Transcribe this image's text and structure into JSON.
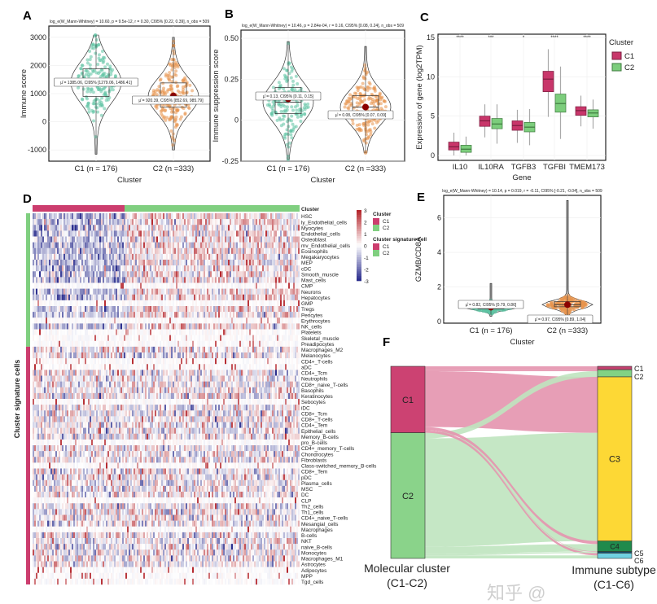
{
  "colors": {
    "c1_points": "#5cc3a3",
    "c2_points": "#e8944c",
    "mean": "#8b0000",
    "cluster_c1": "#cc3d6e",
    "cluster_c2": "#80cf80",
    "heat_low": "#2c2f8e",
    "heat_mid": "#ffffff",
    "heat_high": "#b5282e"
  },
  "chart_data": [
    {
      "panel": "A",
      "type": "violin",
      "stats_text": "log_e(W_Mann-Whitney) = 10.60, p = 9.5e-12, r = 0.30, CI95% [0.22, 0.39], n_obs = 509",
      "xlabel": "Cluster",
      "ylabel": "Immune score",
      "categories": [
        "C1 (n = 176)",
        "C2 (n =333)"
      ],
      "yticks": [
        "3000",
        "2000",
        "1000",
        "0",
        "-1000"
      ],
      "ylim": [
        -1400,
        3400
      ],
      "groups": [
        {
          "n": 176,
          "mean": 1385.06,
          "label": "μ̂ = 1385.06, CI95% [1279.06, 1486.41]",
          "q1": 900,
          "median": 1400,
          "q3": 1880,
          "min": -1150,
          "max": 3080
        },
        {
          "n": 333,
          "mean": 920.39,
          "label": "μ̂ = 920.39, CI95% [852.69, 985.79]",
          "q1": 520,
          "median": 900,
          "q3": 1380,
          "min": -1000,
          "max": 3000
        }
      ]
    },
    {
      "panel": "B",
      "type": "violin",
      "stats_text": "log_e(W_Mann-Whitney) = 10.46, p = 2.84e-04, r = 0.16, CI95% [0.08, 0.24], n_obs = 509",
      "xlabel": "Cluster",
      "ylabel": "Immune suppression score",
      "categories": [
        "C1 (n = 176)",
        "C2 (n =333)"
      ],
      "yticks": [
        "0.50",
        "0.25",
        "0",
        "-0.25"
      ],
      "ylim": [
        -0.25,
        0.55
      ],
      "groups": [
        {
          "n": 176,
          "mean": 0.13,
          "label": "μ̂ = 0.13, CI95% [0.11, 0.15]",
          "q1": 0.04,
          "median": 0.11,
          "q3": 0.2,
          "min": -0.24,
          "max": 0.48
        },
        {
          "n": 333,
          "mean": 0.08,
          "label": "μ̂ = 0.08, CI95% [0.07, 0.09]",
          "q1": 0.01,
          "median": 0.08,
          "q3": 0.15,
          "min": -0.2,
          "max": 0.45
        }
      ]
    },
    {
      "panel": "C",
      "type": "box",
      "xlabel": "Gene",
      "ylabel": "Expression of gene (log2TPM)",
      "categories": [
        "IL10",
        "IL10RA",
        "TGFB3",
        "TGFBI",
        "TMEM173"
      ],
      "significance": [
        "****",
        "***",
        "*",
        "****",
        "****"
      ],
      "yticks": [
        "15",
        "10",
        "5",
        "0"
      ],
      "ylim": [
        -0.7,
        15.5
      ],
      "legend": {
        "title": "Cluster",
        "items": [
          "C1",
          "C2"
        ]
      },
      "series": [
        {
          "name": "C1",
          "boxes": [
            [
              0,
              0.7,
              1.1,
              1.7,
              2.9
            ],
            [
              2.3,
              3.7,
              4.4,
              5.0,
              6.5
            ],
            [
              1.6,
              3.2,
              3.8,
              4.4,
              5.8
            ],
            [
              4.9,
              8.1,
              9.7,
              10.7,
              13.5
            ],
            [
              3.7,
              5.1,
              5.7,
              6.2,
              7.6
            ]
          ]
        },
        {
          "name": "C2",
          "boxes": [
            [
              0,
              0.4,
              0.8,
              1.3,
              2.4
            ],
            [
              1.5,
              3.4,
              4.0,
              4.7,
              6.5
            ],
            [
              1.3,
              3.0,
              3.6,
              4.2,
              5.9
            ],
            [
              2.1,
              5.5,
              6.6,
              7.8,
              11.3
            ],
            [
              3.4,
              4.9,
              5.4,
              5.8,
              7.1
            ]
          ]
        }
      ]
    },
    {
      "panel": "D",
      "type": "heatmap",
      "top_annotation": "Cluster",
      "side_label": "Cluster signature cells",
      "rows": [
        "HSC",
        "ly_Endothelial_cells",
        "Myocytes",
        "Endothelial_cells",
        "Osteoblast",
        "mv_Endothelial_cells",
        "Eosinophils",
        "Megakaryocytes",
        "MEP",
        "cDC",
        "Smooth_muscle",
        "Mast_cells",
        "CMP",
        "Neurons",
        "Hepatocytes",
        "GMP",
        "Tregs",
        "Pericytes",
        "Erythrocytes",
        "NK_cells",
        "Platelets",
        "Skeletal_muscle",
        "Preadipocytes",
        "Macrophages_M2",
        "Melanocytes",
        "CD4+_T-cells",
        "aDC",
        "CD4+_Tcm",
        "Neutrophils",
        "CD8+_naive_T-cells",
        "Basophils",
        "Keratinocytes",
        "Sebocytes",
        "iDC",
        "CD8+_Tcm",
        "CD8+_T-cells",
        "CD4+_Tem",
        "Epithelial_cells",
        "Memory_B-cells",
        "pro_B-cells",
        "CD4+_memory_T-cells",
        "Chondrocytes",
        "Fibroblasts",
        "Class-switched_memory_B-cells",
        "CD8+_Tem",
        "pDC",
        "Plasma_cells",
        "MSC",
        "DC",
        "CLP",
        "Th2_cells",
        "Th1_cells",
        "CD4+_naive_T-cells",
        "Mesangial_cells",
        "Macrophages",
        "B-cells",
        "NKT",
        "naive_B-cells",
        "Monocytes",
        "Macrophages_M1",
        "Astrocytes",
        "Adipocytes",
        "MPP",
        "Tgd_cells"
      ],
      "row_groups": {
        "C2_rows": 23,
        "C1_rows": 41
      },
      "column_groups": {
        "C1": 176,
        "C2": 333
      },
      "scale": {
        "ticks": [
          "3",
          "2",
          "1",
          "0",
          "-1",
          "-2",
          "-3"
        ],
        "range": [
          -3,
          3
        ]
      },
      "legend": [
        {
          "title": "Cluster",
          "items": [
            "C1",
            "C2"
          ]
        },
        {
          "title": "Cluster signature cell",
          "items": [
            "C1",
            "C2"
          ]
        }
      ]
    },
    {
      "panel": "E",
      "type": "violin",
      "stats_text": "log_e(W_Mann-Whitney) = 10.14, p = 0.019, r = -0.11, CI95% [-0.21, -0.04], n_obs = 509",
      "xlabel": "Cluster",
      "ylabel": "GZMB/CD8A",
      "categories": [
        "C1 (n = 176)",
        "C2 (n =333)"
      ],
      "yticks": [
        "6",
        "4",
        "2",
        "0"
      ],
      "ylim": [
        -0.1,
        7.3
      ],
      "groups": [
        {
          "n": 176,
          "mean": 0.82,
          "label": "μ̂ = 0.82, CI95% [0.79, 0.86]",
          "q1": 0.72,
          "median": 0.8,
          "q3": 0.92,
          "min": 0.3,
          "max": 2.2
        },
        {
          "n": 333,
          "mean": 0.97,
          "label": "μ̂ = 0.97, CI95% [0.89, 1.04]",
          "q1": 0.85,
          "median": 0.97,
          "q3": 1.15,
          "min": 0.3,
          "max": 7.0
        }
      ]
    },
    {
      "panel": "F",
      "type": "sankey",
      "left_title": "Molecular cluster",
      "left_subtitle": "(C1-C2)",
      "right_title": "Immune subtype",
      "right_subtitle": "(C1-C6)",
      "left_nodes": [
        {
          "name": "C1",
          "value": 176,
          "color": "#cc4272"
        },
        {
          "name": "C2",
          "value": 333,
          "color": "#8ad38a"
        }
      ],
      "right_nodes": [
        {
          "name": "C1",
          "color": "#c4416f"
        },
        {
          "name": "C2",
          "color": "#82d284"
        },
        {
          "name": "C3",
          "color": "#fdd835"
        },
        {
          "name": "C4",
          "color": "#1f8a4c"
        },
        {
          "name": "C5",
          "color": "#164f6e"
        },
        {
          "name": "C6",
          "color": "#6fd1e0"
        }
      ],
      "flows": [
        {
          "from": "C1",
          "to": "C1",
          "value": 9
        },
        {
          "from": "C1",
          "to": "C2",
          "value": 4
        },
        {
          "from": "C1",
          "to": "C3",
          "value": 148
        },
        {
          "from": "C1",
          "to": "C4",
          "value": 8
        },
        {
          "from": "C1",
          "to": "C5",
          "value": 1
        },
        {
          "from": "C1",
          "to": "C6",
          "value": 6
        },
        {
          "from": "C2",
          "to": "C2",
          "value": 15
        },
        {
          "from": "C2",
          "to": "C3",
          "value": 287
        },
        {
          "from": "C2",
          "to": "C4",
          "value": 20
        },
        {
          "from": "C2",
          "to": "C5",
          "value": 3
        },
        {
          "from": "C2",
          "to": "C6",
          "value": 8
        }
      ]
    }
  ],
  "panel_labels": [
    "A",
    "B",
    "C",
    "D",
    "E",
    "F"
  ],
  "watermark": "知乎 @"
}
